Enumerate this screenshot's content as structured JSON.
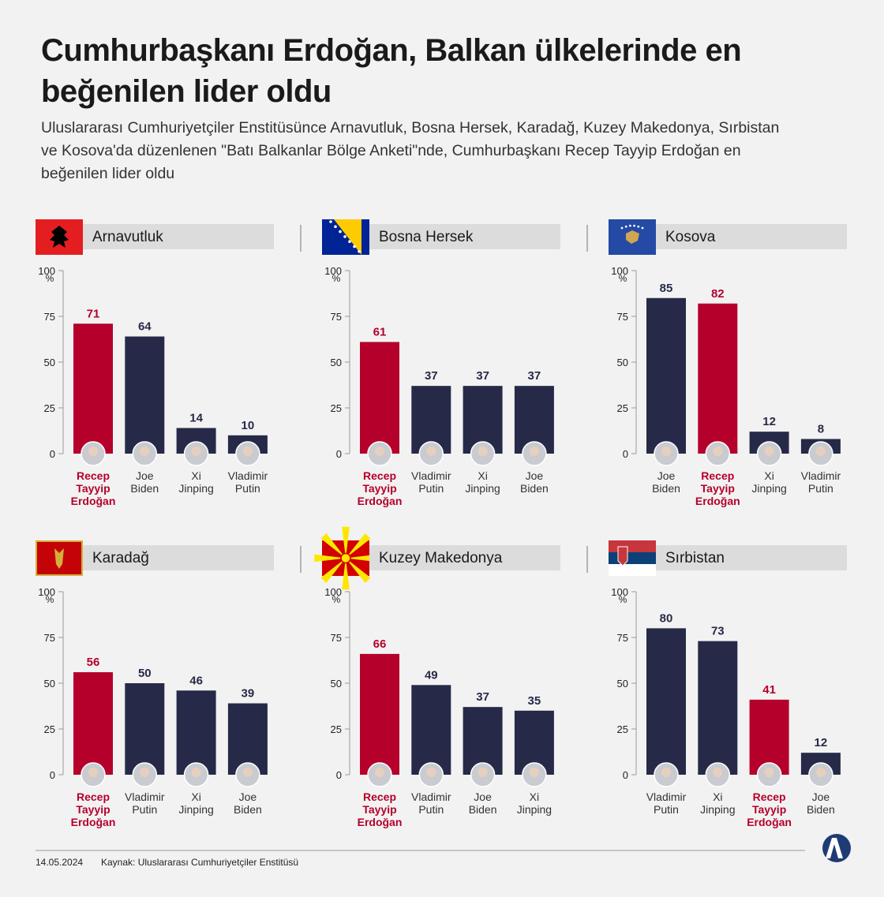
{
  "title": "Cumhurbaşkanı Erdoğan, Balkan ülkelerinde en beğenilen lider oldu",
  "subtitle": "Uluslararası Cumhuriyetçiler Enstitüsünce Arnavutluk, Bosna Hersek, Karadağ, Kuzey Makedonya, Sırbistan ve Kosova'da düzenlenen \"Batı Balkanlar Bölge Anketi\"nde, Cumhurbaşkanı Recep Tayyip Erdoğan en beğenilen lider oldu",
  "date": "14.05.2024",
  "source": "Kaynak: Uluslararası Cumhuriyetçiler Enstitüsü",
  "chart_data": [
    {
      "type": "bar",
      "title": "Arnavutluk",
      "unit": "%",
      "categories": [
        "Recep Tayyip Erdoğan",
        "Joe Biden",
        "Xi Jinping",
        "Vladimir Putin"
      ],
      "values": [
        71,
        64,
        14,
        10
      ],
      "colors": [
        "#b4002b",
        "#262a48",
        "#262a48",
        "#262a48"
      ],
      "ylim": [
        0,
        100
      ],
      "yticks": [
        0,
        25,
        50,
        75,
        100
      ]
    },
    {
      "type": "bar",
      "title": "Bosna Hersek",
      "unit": "%",
      "categories": [
        "Recep Tayyip Erdoğan",
        "Vladimir Putin",
        "Xi Jinping",
        "Joe Biden"
      ],
      "values": [
        61,
        37,
        37,
        37
      ],
      "colors": [
        "#b4002b",
        "#262a48",
        "#262a48",
        "#262a48"
      ],
      "ylim": [
        0,
        100
      ],
      "yticks": [
        0,
        25,
        50,
        75,
        100
      ]
    },
    {
      "type": "bar",
      "title": "Kosova",
      "unit": "%",
      "categories": [
        "Joe Biden",
        "Recep Tayyip Erdoğan",
        "Xi Jinping",
        "Vladimir Putin"
      ],
      "values": [
        85,
        82,
        12,
        8
      ],
      "colors": [
        "#262a48",
        "#b4002b",
        "#262a48",
        "#262a48"
      ],
      "ylim": [
        0,
        100
      ],
      "yticks": [
        0,
        25,
        50,
        75,
        100
      ]
    },
    {
      "type": "bar",
      "title": "Karadağ",
      "unit": "%",
      "categories": [
        "Recep Tayyip Erdoğan",
        "Vladimir Putin",
        "Xi Jinping",
        "Joe Biden"
      ],
      "values": [
        56,
        50,
        46,
        39
      ],
      "colors": [
        "#b4002b",
        "#262a48",
        "#262a48",
        "#262a48"
      ],
      "ylim": [
        0,
        100
      ],
      "yticks": [
        0,
        25,
        50,
        75,
        100
      ]
    },
    {
      "type": "bar",
      "title": "Kuzey Makedonya",
      "unit": "%",
      "categories": [
        "Recep Tayyip Erdoğan",
        "Vladimir Putin",
        "Joe Biden",
        "Xi Jinping"
      ],
      "values": [
        66,
        49,
        37,
        35
      ],
      "colors": [
        "#b4002b",
        "#262a48",
        "#262a48",
        "#262a48"
      ],
      "ylim": [
        0,
        100
      ],
      "yticks": [
        0,
        25,
        50,
        75,
        100
      ]
    },
    {
      "type": "bar",
      "title": "Sırbistan",
      "unit": "%",
      "categories": [
        "Vladimir Putin",
        "Xi Jinping",
        "Recep Tayyip Erdoğan",
        "Joe Biden"
      ],
      "values": [
        80,
        73,
        41,
        12
      ],
      "colors": [
        "#262a48",
        "#262a48",
        "#b4002b",
        "#262a48"
      ],
      "ylim": [
        0,
        100
      ],
      "yticks": [
        0,
        25,
        50,
        75,
        100
      ]
    }
  ]
}
